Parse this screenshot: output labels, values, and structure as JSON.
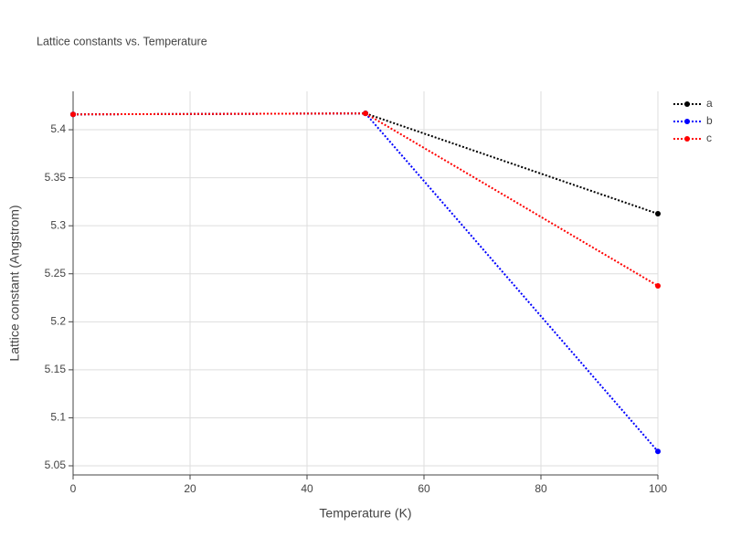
{
  "chart_data": {
    "type": "line",
    "title": "Lattice constants vs. Temperature",
    "x_label": "Temperature (K)",
    "y_label": "Lattice constant (Angstrom)",
    "x": [
      0,
      50,
      100
    ],
    "series": [
      {
        "name": "a",
        "color": "#000000",
        "values": [
          5.416,
          5.417,
          5.3125
        ]
      },
      {
        "name": "b",
        "color": "#0000ff",
        "values": [
          5.416,
          5.417,
          5.065
        ]
      },
      {
        "name": "c",
        "color": "#ff0000",
        "values": [
          5.416,
          5.417,
          5.2374
        ]
      }
    ],
    "xlim": [
      0,
      100
    ],
    "xticks": [
      0,
      20,
      40,
      60,
      80,
      100
    ],
    "ylim": [
      5.0405,
      5.44
    ],
    "yticks": [
      5.05,
      5.1,
      5.15,
      5.2,
      5.25,
      5.3,
      5.35,
      5.4
    ],
    "grid": true,
    "legend": "top-right"
  }
}
